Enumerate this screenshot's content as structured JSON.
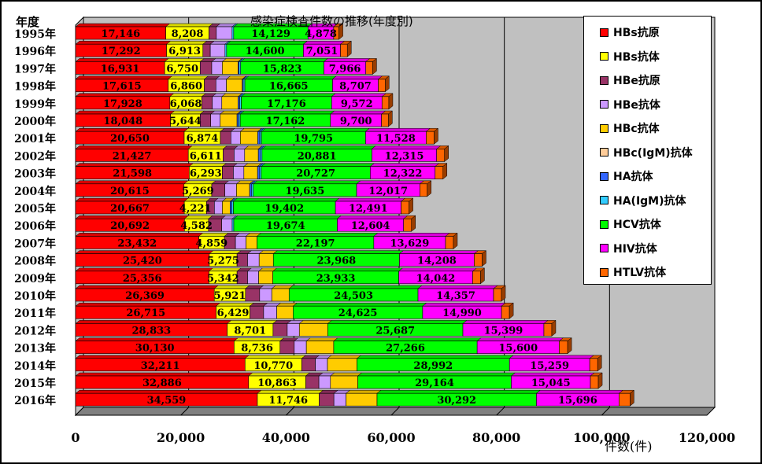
{
  "chart_data": {
    "type": "bar",
    "orientation": "horizontal",
    "stacked": true,
    "title": "感染症検査件数の推移(年度別)",
    "ylabel": "年度",
    "xlabel": "件数(件)",
    "xlim": [
      0,
      120000
    ],
    "xticks": [
      "0",
      "20,000",
      "40,000",
      "60,000",
      "80,000",
      "100,000",
      "120,000"
    ],
    "grid": true,
    "legend_position": "right",
    "categories": [
      "1995年",
      "1996年",
      "1997年",
      "1998年",
      "1999年",
      "2000年",
      "2001年",
      "2002年",
      "2003年",
      "2004年",
      "2005年",
      "2006年",
      "2007年",
      "2008年",
      "2009年",
      "2010年",
      "2011年",
      "2012年",
      "2013年",
      "2014年",
      "2015年",
      "2016年"
    ],
    "series": [
      {
        "name": "HBs抗原",
        "color": "#ff0000",
        "labeled": true,
        "values": [
          17146,
          17292,
          16931,
          17615,
          17928,
          18048,
          20650,
          21427,
          21598,
          20615,
          20667,
          20692,
          23432,
          25420,
          25356,
          26369,
          26715,
          28833,
          30130,
          32211,
          32886,
          34559
        ],
        "labels": [
          "17,146",
          "17,292",
          "16,931",
          "17,615",
          "17,928",
          "18,048",
          "20,650",
          "21,427",
          "21,598",
          "20,615",
          "20,667",
          "20,692",
          "23,432",
          "25,420",
          "25,356",
          "26,369",
          "26,715",
          "28,833",
          "30,130",
          "32,211",
          "32,886",
          "34,559"
        ]
      },
      {
        "name": "HBs抗体",
        "color": "#ffff00",
        "labeled": true,
        "values": [
          8208,
          6913,
          6750,
          6860,
          6068,
          5644,
          6874,
          6611,
          6293,
          5269,
          4221,
          4582,
          4859,
          5275,
          5342,
          5921,
          6429,
          8701,
          8736,
          10770,
          10863,
          11746
        ],
        "labels": [
          "8,208",
          "6,913",
          "6,750",
          "6,860",
          "6,068",
          "5,644",
          "6,874",
          "6,611",
          "6,293",
          "5,269",
          "4,221",
          "4,582",
          "4,859",
          "5,275",
          "5,342",
          "5,921",
          "6,429",
          "8,701",
          "8,736",
          "10,770",
          "10,863",
          "11,746"
        ]
      },
      {
        "name": "HBe抗原",
        "color": "#993366",
        "labeled": false,
        "values": [
          1400,
          1400,
          2200,
          2200,
          2000,
          2000,
          2000,
          2100,
          2100,
          2500,
          1500,
          2500,
          2100,
          2000,
          2000,
          2700,
          2600,
          2700,
          2700,
          2600,
          2500,
          2800
        ]
      },
      {
        "name": "HBe抗体",
        "color": "#cc99ff",
        "labeled": false,
        "values": [
          3000,
          2800,
          2000,
          2000,
          1800,
          1800,
          1800,
          2000,
          2000,
          2200,
          1500,
          2000,
          2000,
          2200,
          2100,
          2300,
          2500,
          2300,
          2300,
          2300,
          2200,
          2300
        ]
      },
      {
        "name": "HBc抗体",
        "color": "#ffcc00",
        "labeled": false,
        "values": [
          0,
          0,
          3000,
          3000,
          3100,
          3200,
          3300,
          2600,
          2600,
          2500,
          1500,
          0,
          2100,
          2700,
          2700,
          3300,
          3100,
          5400,
          5200,
          5600,
          5200,
          5900
        ]
      },
      {
        "name": "HBc(IgM)抗体",
        "color": "#ffcc99",
        "labeled": false,
        "values": [
          0,
          0,
          0,
          0,
          0,
          0,
          0,
          0,
          0,
          0,
          0,
          0,
          0,
          0,
          0,
          0,
          0,
          0,
          0,
          0,
          0,
          0
        ]
      },
      {
        "name": "HA抗体",
        "color": "#3366ff",
        "labeled": false,
        "values": [
          0,
          0,
          200,
          200,
          300,
          300,
          400,
          400,
          400,
          400,
          300,
          0,
          0,
          0,
          0,
          0,
          0,
          0,
          0,
          0,
          0,
          0
        ]
      },
      {
        "name": "HA(IgM)抗体",
        "color": "#33ccff",
        "labeled": false,
        "values": [
          300,
          300,
          300,
          300,
          300,
          300,
          300,
          300,
          300,
          300,
          300,
          300,
          0,
          0,
          0,
          0,
          0,
          0,
          0,
          0,
          0,
          0
        ]
      },
      {
        "name": "HCV抗体",
        "color": "#00ff00",
        "labeled": true,
        "values": [
          14129,
          14600,
          15823,
          16665,
          17176,
          17162,
          19795,
          20881,
          20727,
          19635,
          19402,
          19674,
          22197,
          23968,
          23933,
          24503,
          24625,
          25687,
          27266,
          28992,
          29164,
          30292
        ],
        "labels": [
          "14,129",
          "14,600",
          "15,823",
          "16,665",
          "17,176",
          "17,162",
          "19,795",
          "20,881",
          "20,727",
          "19,635",
          "19,402",
          "19,674",
          "22,197",
          "23,968",
          "23,933",
          "24,503",
          "24,625",
          "25,687",
          "27,266",
          "28,992",
          "29,164",
          "30,292"
        ]
      },
      {
        "name": "HIV抗体",
        "color": "#ff00ff",
        "labeled": true,
        "values": [
          4878,
          7051,
          7966,
          8707,
          9572,
          9700,
          11528,
          12315,
          12322,
          12017,
          12491,
          12604,
          13629,
          14208,
          14042,
          14357,
          14990,
          15399,
          15600,
          15259,
          15045,
          15696
        ],
        "labels": [
          "4,878",
          "7,051",
          "7,966",
          "8,707",
          "9,572",
          "9,700",
          "11,528",
          "12,315",
          "12,322",
          "12,017",
          "12,491",
          "12,604",
          "13,629",
          "14,208",
          "14,042",
          "14,357",
          "14,990",
          "15,399",
          "15,600",
          "15,259",
          "15,045",
          "15,696"
        ]
      },
      {
        "name": "HTLV抗体",
        "color": "#ff6600",
        "labeled": false,
        "values": [
          1000,
          1300,
          1300,
          1300,
          1300,
          1300,
          1500,
          1500,
          1500,
          1400,
          1500,
          1500,
          1500,
          1500,
          1500,
          1500,
          1500,
          1500,
          1600,
          1500,
          1500,
          2100
        ]
      }
    ]
  }
}
